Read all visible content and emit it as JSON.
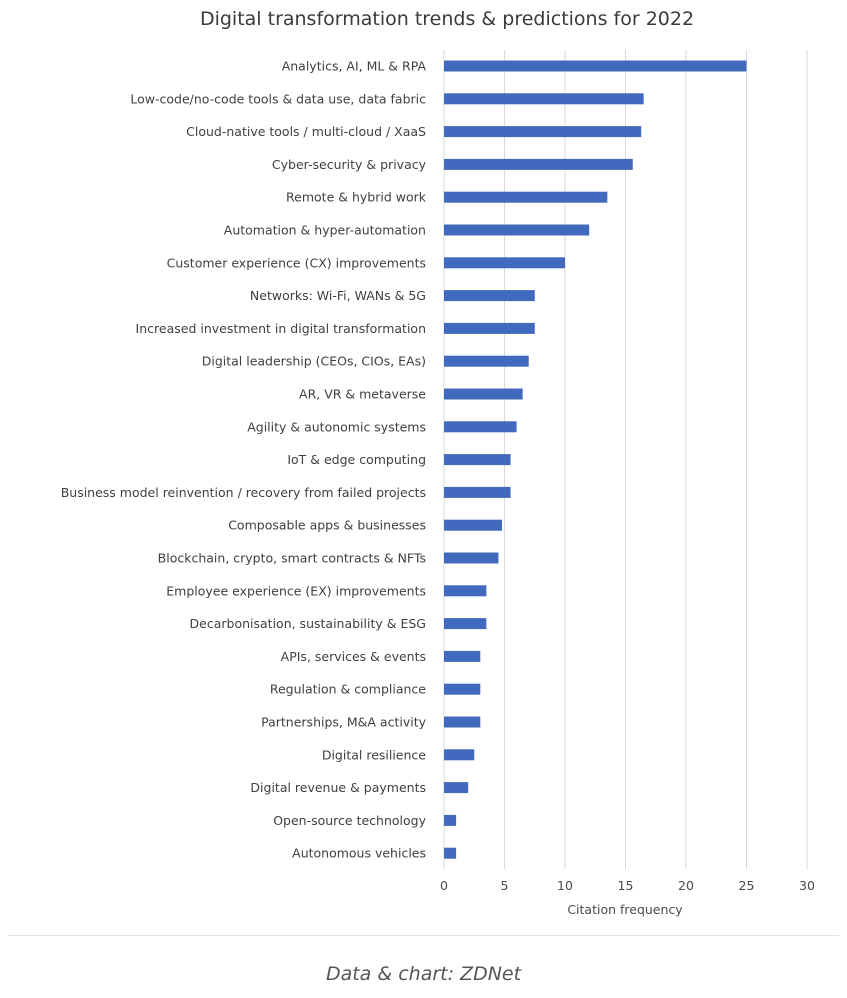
{
  "caption": "Data & chart: ZDNet",
  "chart_data": {
    "type": "bar",
    "orientation": "horizontal",
    "title": "Digital transformation trends & predictions for 2022",
    "xlabel": "Citation frequency",
    "ylabel": "",
    "xlim": [
      0,
      30
    ],
    "xticks": [
      0,
      5,
      10,
      15,
      20,
      25,
      30
    ],
    "grid": "vertical",
    "legend": "none",
    "bar_color": "#4169bd",
    "categories": [
      "Analytics, AI, ML & RPA",
      "Low-code/no-code tools & data use, data fabric",
      "Cloud-native tools / multi-cloud / XaaS",
      "Cyber-security & privacy",
      "Remote & hybrid work",
      "Automation & hyper-automation",
      "Customer experience (CX) improvements",
      "Networks: Wi-Fi, WANs & 5G",
      "Increased investment in digital transformation",
      "Digital leadership (CEOs, CIOs, EAs)",
      "AR, VR & metaverse",
      "Agility & autonomic systems",
      "IoT & edge computing",
      "Business model reinvention / recovery from failed projects",
      "Composable apps &  businesses",
      "Blockchain, crypto, smart contracts & NFTs",
      "Employee experience (EX) improvements",
      "Decarbonisation, sustainability & ESG",
      "APIs, services & events",
      "Regulation & compliance",
      "Partnerships, M&A activity",
      "Digital resilience",
      "Digital revenue & payments",
      "Open-source technology",
      "Autonomous vehicles"
    ],
    "values": [
      25,
      16.5,
      16.3,
      15.6,
      13.5,
      12,
      10,
      7.5,
      7.5,
      7,
      6.5,
      6,
      5.5,
      5.5,
      4.8,
      4.5,
      3.5,
      3.5,
      3,
      3,
      3,
      2.5,
      2,
      1,
      1
    ]
  }
}
